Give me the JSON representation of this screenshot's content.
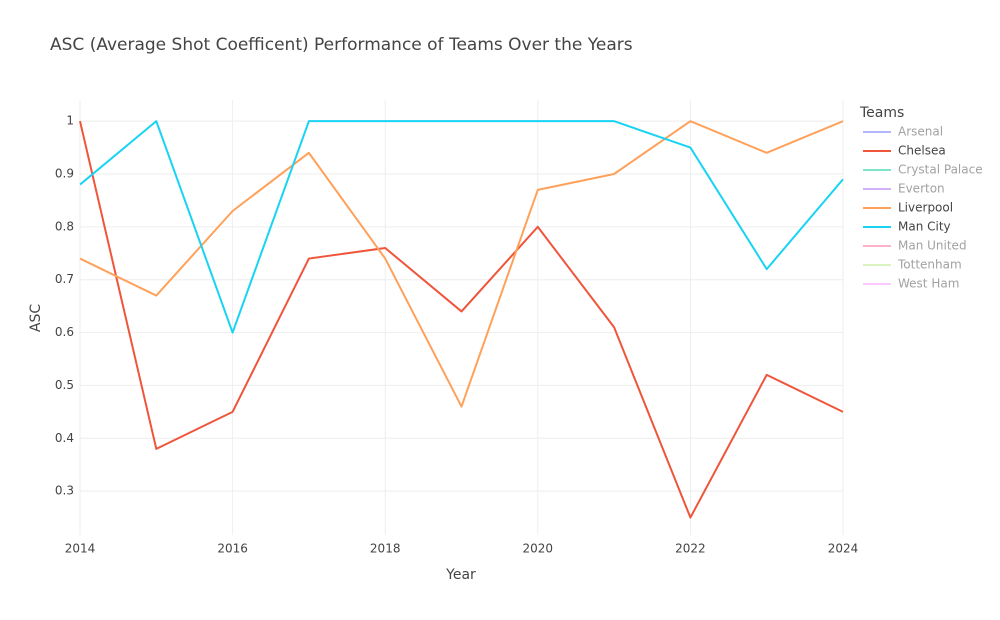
{
  "chart_data": {
    "type": "line",
    "title": "ASC (Average Shot Coefficent) Performance of Teams Over the Years",
    "x_label": "Year",
    "y_label": "ASC",
    "legend_title": "Teams",
    "x": [
      2014,
      2015,
      2016,
      2017,
      2018,
      2019,
      2020,
      2021,
      2022,
      2023,
      2024
    ],
    "series": [
      {
        "name": "Arsenal",
        "color": "#636efa",
        "visible": false
      },
      {
        "name": "Chelsea",
        "color": "#EF553B",
        "visible": true,
        "values": [
          1.0,
          0.38,
          0.45,
          0.74,
          0.76,
          0.64,
          0.8,
          0.61,
          0.25,
          0.52,
          0.45
        ]
      },
      {
        "name": "Crystal Palace",
        "color": "#00cc96",
        "visible": false
      },
      {
        "name": "Everton",
        "color": "#ab63fa",
        "visible": false
      },
      {
        "name": "Liverpool",
        "color": "#FFA15A",
        "visible": true,
        "values": [
          0.74,
          0.67,
          0.83,
          0.94,
          0.74,
          0.46,
          0.87,
          0.9,
          1.0,
          0.94,
          1.0
        ]
      },
      {
        "name": "Man City",
        "color": "#19d3f3",
        "visible": true,
        "values": [
          0.88,
          1.0,
          0.6,
          1.0,
          1.0,
          1.0,
          1.0,
          1.0,
          0.95,
          0.72,
          0.89
        ]
      },
      {
        "name": "Man United",
        "color": "#FF6692",
        "visible": false
      },
      {
        "name": "Tottenham",
        "color": "#B6E880",
        "visible": false
      },
      {
        "name": "West Ham",
        "color": "#FF97FF",
        "visible": false
      }
    ],
    "xlim": [
      2014,
      2024
    ],
    "xticks": [
      2014,
      2016,
      2018,
      2020,
      2022,
      2024
    ],
    "ylim": [
      0.217,
      1.04
    ],
    "yticks": [
      0.3,
      0.4,
      0.5,
      0.6,
      0.7,
      0.8,
      0.9,
      1
    ],
    "grid": true,
    "legend": "right"
  }
}
